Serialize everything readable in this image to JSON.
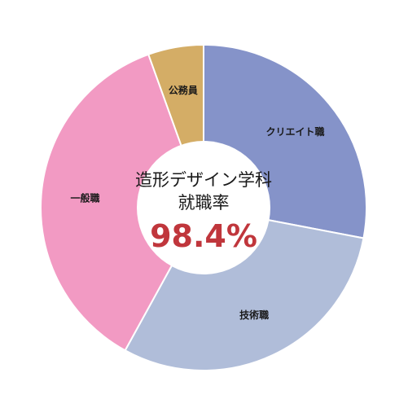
{
  "chart_data": {
    "type": "pie",
    "donut": true,
    "start_angle_deg": 0,
    "direction": "clockwise",
    "categories": [
      "クリエイト職",
      "技術職",
      "一般職",
      "公務員"
    ],
    "values": [
      28,
      30,
      36.5,
      5.5
    ],
    "colors": [
      "#8593c9",
      "#b0bdd9",
      "#f29ac3",
      "#d4ad66"
    ],
    "center_title_lines": [
      "造形デザイン学科",
      "就職率"
    ],
    "center_value": "98.4%",
    "center_value_color": "#c0363c",
    "title": "",
    "legend": "none"
  }
}
